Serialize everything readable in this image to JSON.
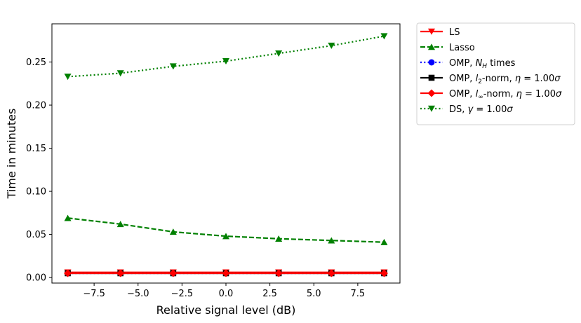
{
  "chart_data": {
    "type": "line",
    "title": "",
    "xlabel": "Relative signal level (dB)",
    "ylabel": "Time in minutes",
    "xlim": [
      -9.9,
      9.9
    ],
    "ylim": [
      -0.0064,
      0.2943
    ],
    "xticks": [
      -7.5,
      -5.0,
      -2.5,
      0.0,
      2.5,
      5.0,
      7.5
    ],
    "xtick_labels": [
      "−7.5",
      "−5.0",
      "−2.5",
      "0.0",
      "2.5",
      "5.0",
      "7.5"
    ],
    "yticks": [
      0.0,
      0.05,
      0.1,
      0.15,
      0.2,
      0.25
    ],
    "ytick_labels": [
      "0.00",
      "0.05",
      "0.10",
      "0.15",
      "0.20",
      "0.25"
    ],
    "grid": false,
    "legend_position": "outside-top-right",
    "x": [
      -9,
      -6,
      -3,
      0,
      3,
      6,
      9
    ],
    "series": [
      {
        "id": "ls",
        "name": "LS",
        "values": [
          0.006,
          0.006,
          0.006,
          0.006,
          0.006,
          0.006,
          0.006
        ],
        "color": "#ff0000",
        "linestyle": "solid",
        "marker": "triangle-down"
      },
      {
        "id": "lasso",
        "name": "Lasso",
        "values": [
          0.069,
          0.062,
          0.053,
          0.048,
          0.045,
          0.043,
          0.041
        ],
        "color": "#008000",
        "linestyle": "dashed",
        "marker": "triangle-up"
      },
      {
        "id": "omp-nh",
        "name": "OMP, N_H times",
        "values": [
          0.005,
          0.005,
          0.005,
          0.005,
          0.005,
          0.005,
          0.005
        ],
        "color": "#0000ff",
        "linestyle": "dotted",
        "marker": "circle"
      },
      {
        "id": "omp-l2",
        "name": "OMP, l_2-norm, η = 1.00σ",
        "values": [
          0.005,
          0.005,
          0.005,
          0.005,
          0.005,
          0.005,
          0.005
        ],
        "color": "#000000",
        "linestyle": "solid",
        "marker": "square"
      },
      {
        "id": "omp-linf",
        "name": "OMP, l_∞-norm, η = 1.00σ",
        "values": [
          0.005,
          0.005,
          0.005,
          0.005,
          0.005,
          0.005,
          0.005
        ],
        "color": "#ff0000",
        "linestyle": "solid",
        "marker": "diamond"
      },
      {
        "id": "ds",
        "name": "DS, γ = 1.00σ",
        "values": [
          0.233,
          0.237,
          0.245,
          0.251,
          0.26,
          0.269,
          0.28
        ],
        "color": "#008000",
        "linestyle": "dotted",
        "marker": "triangle-down"
      }
    ]
  },
  "legend": {
    "ls": {
      "label": "LS"
    },
    "lasso": {
      "label": "Lasso"
    },
    "omp_nh": {
      "prefix": "OMP, ",
      "sym": "N",
      "sub": "H",
      "suffix": " times"
    },
    "omp_l2": {
      "prefix": "OMP, ",
      "sym": "l",
      "sub": "2",
      "mid": "-norm, ",
      "greek": "η",
      "eq": " = 1.00",
      "sigma": "σ"
    },
    "omp_linf": {
      "prefix": "OMP, ",
      "sym": "l",
      "sub": "∞",
      "mid": "-norm, ",
      "greek": "η",
      "eq": " = 1.00",
      "sigma": "σ"
    },
    "ds": {
      "prefix": "DS, ",
      "greek": "γ",
      "eq": " = 1.00",
      "sigma": "σ"
    }
  }
}
